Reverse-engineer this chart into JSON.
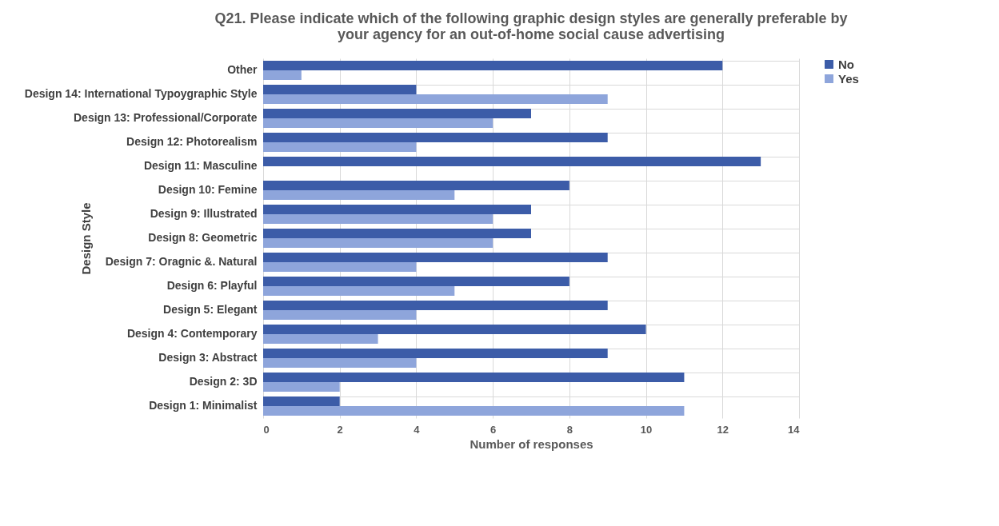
{
  "chart_data": {
    "type": "bar",
    "orientation": "horizontal",
    "title": [
      "Q21. Please indicate which of the following graphic design styles are generally preferable by",
      "your agency for an out-of-home social cause advertising"
    ],
    "xlabel": "Number of responses",
    "ylabel": "Design Style",
    "categories": [
      "Other",
      "Design 14: International Typoygraphic Style",
      "Design 13: Professional/Corporate",
      "Design 12: Photorealism",
      "Design 11: Masculine",
      "Design 10: Femine",
      "Design 9: Illustrated",
      "Design 8: Geometric",
      "Design 7: Oragnic &. Natural",
      "Design 6: Playful",
      "Design 5: Elegant",
      "Design 4: Contemporary",
      "Design 3: Abstract",
      "Design 2: 3D",
      "Design 1: Minimalist"
    ],
    "series": [
      {
        "name": "No",
        "color": "#3c5ca8",
        "values": [
          12,
          4,
          7,
          9,
          13,
          8,
          7,
          7,
          9,
          8,
          9,
          10,
          9,
          11,
          2
        ]
      },
      {
        "name": "Yes",
        "color": "#8ea5db",
        "values": [
          1,
          9,
          6,
          4,
          0,
          5,
          6,
          6,
          4,
          5,
          4,
          3,
          4,
          2,
          11
        ]
      }
    ],
    "xlim": [
      0,
      14
    ],
    "xticks": [
      0,
      2,
      4,
      6,
      8,
      10,
      12,
      14
    ],
    "grid": true,
    "legend": "right"
  }
}
